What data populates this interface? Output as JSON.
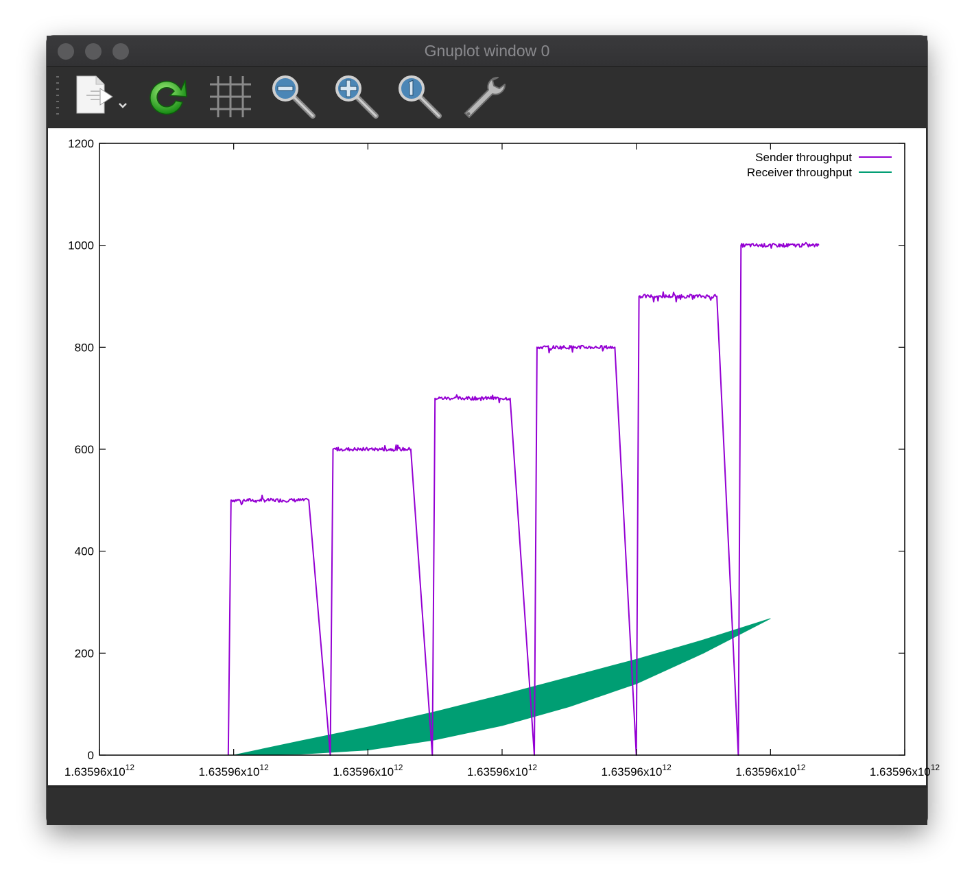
{
  "window": {
    "title": "Gnuplot window 0"
  },
  "toolbar": {
    "buttons": [
      {
        "name": "export",
        "icon": "export-document-icon"
      },
      {
        "name": "replot",
        "icon": "refresh-icon"
      },
      {
        "name": "grid",
        "icon": "grid-icon"
      },
      {
        "name": "zoom-previous",
        "icon": "zoom-out-icon"
      },
      {
        "name": "zoom-next",
        "icon": "zoom-in-icon"
      },
      {
        "name": "autoscale",
        "icon": "zoom-reset-icon"
      },
      {
        "name": "settings",
        "icon": "wrench-icon"
      }
    ]
  },
  "chart_data": {
    "type": "line",
    "title": "",
    "xlabel": "",
    "ylabel": "",
    "ylim": [
      0,
      1200
    ],
    "y_ticks": [
      0,
      200,
      400,
      600,
      800,
      1000,
      1200
    ],
    "x_tick_labels": [
      "1.63596x10",
      "1.63596x10",
      "1.63596x10",
      "1.63596x10",
      "1.63596x10",
      "1.63596x10",
      "1.63596x10"
    ],
    "x_tick_exponent": "12",
    "xlim": [
      0,
      6
    ],
    "grid": false,
    "legend": "top-right",
    "series": [
      {
        "name": "Sender throughput",
        "color": "#9400d3",
        "style": "line",
        "steps": [
          {
            "rise": 0.96,
            "start": 0.98,
            "end": 1.56,
            "level": 500,
            "fall": 1.72
          },
          {
            "rise": 1.72,
            "start": 1.74,
            "end": 2.32,
            "level": 600,
            "fall": 2.48
          },
          {
            "rise": 2.48,
            "start": 2.5,
            "end": 3.06,
            "level": 700,
            "fall": 3.24
          },
          {
            "rise": 3.24,
            "start": 3.26,
            "end": 3.84,
            "level": 800,
            "fall": 4.0
          },
          {
            "rise": 4.0,
            "start": 4.02,
            "end": 4.6,
            "level": 900,
            "fall": 4.76
          },
          {
            "rise": 4.76,
            "start": 4.78,
            "end": 5.36,
            "level": 1000,
            "fall": null
          }
        ]
      },
      {
        "name": "Receiver throughput",
        "color": "#009e73",
        "style": "filledcurve",
        "upper": [
          [
            1.0,
            0
          ],
          [
            1.5,
            28
          ],
          [
            2.0,
            55
          ],
          [
            2.5,
            85
          ],
          [
            3.0,
            118
          ],
          [
            3.5,
            153
          ],
          [
            4.0,
            188
          ],
          [
            4.5,
            226
          ],
          [
            5.0,
            268
          ]
        ],
        "lower": [
          [
            1.0,
            0
          ],
          [
            1.5,
            2
          ],
          [
            2.0,
            10
          ],
          [
            2.5,
            30
          ],
          [
            3.0,
            58
          ],
          [
            3.5,
            95
          ],
          [
            4.0,
            140
          ],
          [
            4.5,
            200
          ],
          [
            5.0,
            268
          ]
        ]
      }
    ]
  }
}
